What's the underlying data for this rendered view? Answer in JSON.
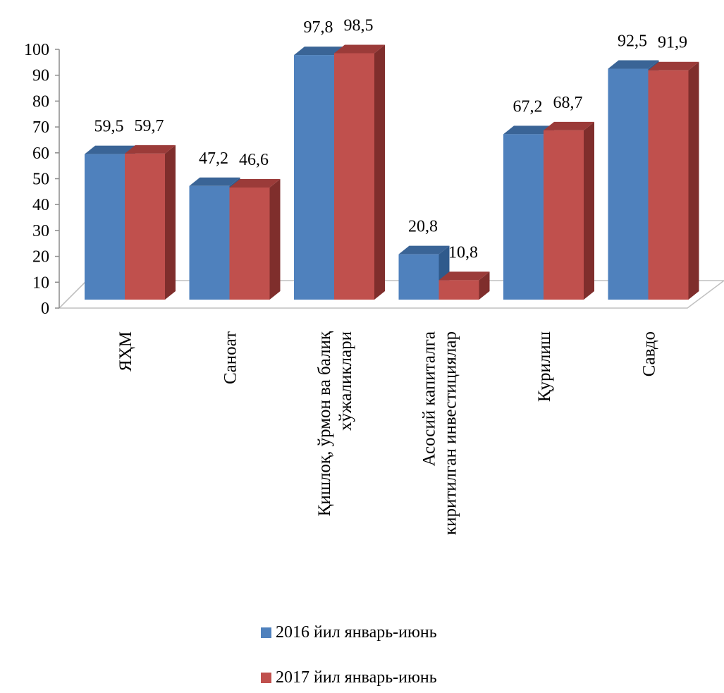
{
  "chart_data": {
    "type": "bar",
    "title": "",
    "xlabel": "",
    "ylabel": "",
    "categories": [
      [
        "ЯҲМ"
      ],
      [
        "Саноат"
      ],
      [
        "Қишлоқ, ўрмон ва балиқ",
        "хўжаликлари"
      ],
      [
        "Асосий капиталга",
        "киритилган инвестициялар"
      ],
      [
        "Қурилиш"
      ],
      [
        "Савдо"
      ]
    ],
    "series": [
      {
        "name": "2016 йил январь-июнь",
        "values": [
          59.5,
          47.2,
          97.8,
          20.8,
          67.2,
          92.5
        ],
        "value_labels": [
          "59,5",
          "47,2",
          "97,8",
          "20,8",
          "67,2",
          "92,5"
        ]
      },
      {
        "name": "2017 йил январь-июнь",
        "values": [
          59.7,
          46.6,
          98.5,
          10.8,
          68.7,
          91.9
        ],
        "value_labels": [
          "59,7",
          "46,6",
          "98,5",
          "10,8",
          "68,7",
          "91,9"
        ]
      }
    ],
    "ylim": [
      0,
      100
    ],
    "yticks": [
      "0",
      "10",
      "20",
      "30",
      "40",
      "50",
      "60",
      "70",
      "80",
      "90",
      "100"
    ],
    "grid": false,
    "legend_position": "bottom",
    "style": "3d-clustered-column",
    "colors": {
      "series1_front": "#4F81BD",
      "series1_top": "#3A6496",
      "series1_side": "#2F5A8C",
      "series2_front": "#C0504D",
      "series2_top": "#9B3B39",
      "series2_side": "#7F2E2C",
      "floor": "#C0C0C0"
    }
  }
}
